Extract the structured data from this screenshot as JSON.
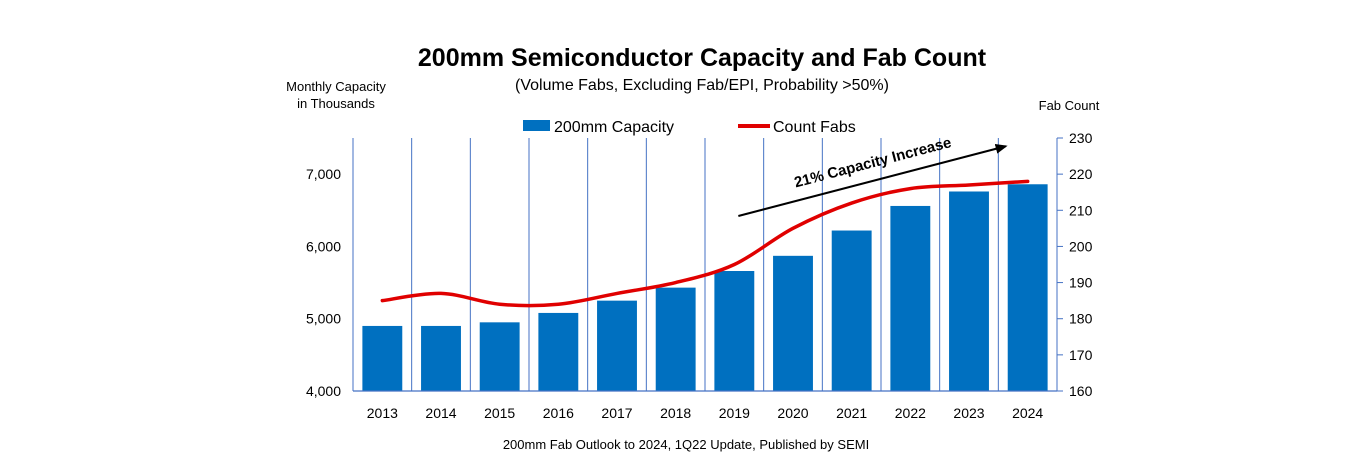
{
  "chart_data": {
    "type": "bar+line",
    "title": "200mm Semiconductor Capacity and Fab Count",
    "subtitle": "(Volume Fabs, Excluding Fab/EPI, Probability >50%)",
    "ylabel_left_line1": "Monthly Capacity",
    "ylabel_left_line2": "in Thousands",
    "ylabel_right": "Fab Count",
    "categories": [
      "2013",
      "2014",
      "2015",
      "2016",
      "2017",
      "2018",
      "2019",
      "2020",
      "2021",
      "2022",
      "2023",
      "2024"
    ],
    "series": [
      {
        "name": "200mm Capacity",
        "type": "bar",
        "axis": "left",
        "color": "#0070C0",
        "values": [
          4900,
          4900,
          4950,
          5080,
          5250,
          5430,
          5660,
          5870,
          6220,
          6560,
          6760,
          6860
        ]
      },
      {
        "name": "Count Fabs",
        "type": "line",
        "axis": "right",
        "color": "#E00000",
        "values": [
          185,
          187,
          184,
          184,
          187,
          190,
          195,
          205,
          212,
          216,
          217,
          218
        ]
      }
    ],
    "ylim_left": [
      4000,
      7500
    ],
    "yticks_left": [
      "4,000",
      "5,000",
      "6,000",
      "7,000"
    ],
    "yticks_left_values": [
      4000,
      5000,
      6000,
      7000
    ],
    "ylim_right": [
      160,
      230
    ],
    "yticks_right": [
      160,
      170,
      180,
      190,
      200,
      210,
      220,
      230
    ],
    "vertical_gridlines": true,
    "legend_position": "top",
    "annotation": {
      "text": "21% Capacity Increase",
      "from_category": "2019",
      "to_category": "2024"
    },
    "source": "200mm Fab Outlook to 2024, 1Q22 Update, Published by SEMI"
  }
}
